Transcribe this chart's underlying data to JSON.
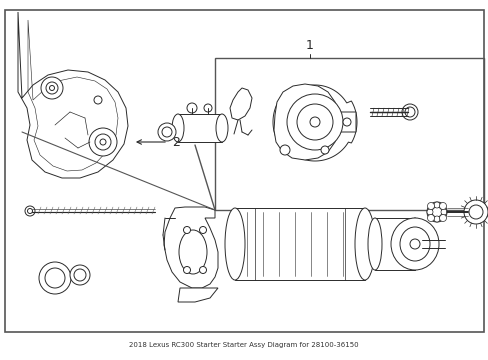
{
  "title": "2018 Lexus RC300 Starter Starter Assy Diagram for 28100-36150",
  "bg_color": "#ffffff",
  "border_color": "#555555",
  "line_color": "#2a2a2a",
  "label_1": "1",
  "label_2": "2",
  "figsize": [
    4.89,
    3.6
  ],
  "dpi": 100
}
